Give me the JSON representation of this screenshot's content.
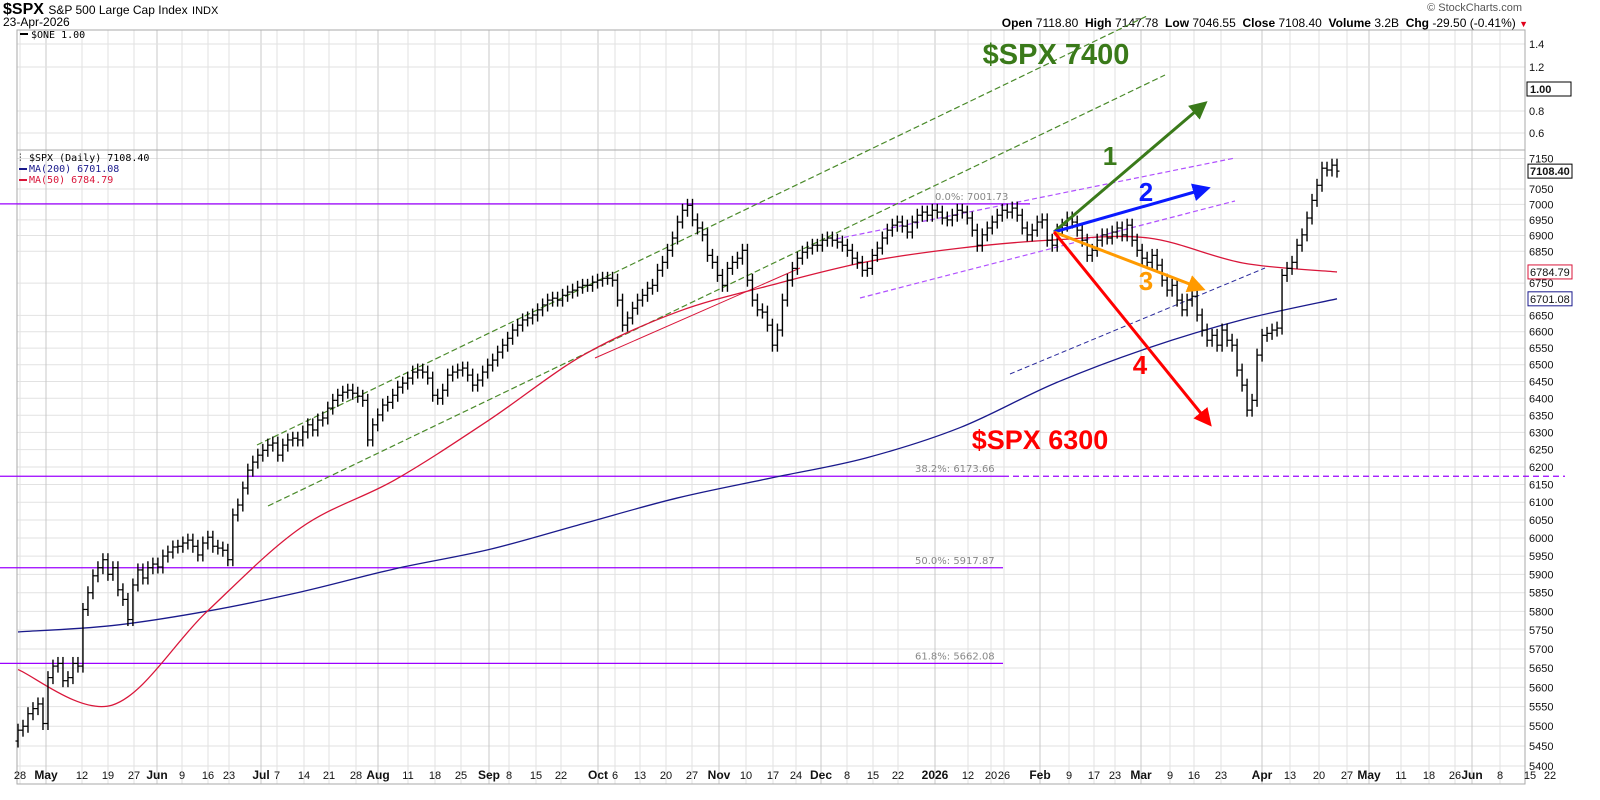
{
  "header": {
    "symbol": "$SPX",
    "name": "S&P 500 Large Cap Index",
    "exchange": "INDX",
    "date": "23-Apr-2026",
    "copyright": "© StockCharts.com",
    "open_label": "Open",
    "open": "7118.80",
    "high_label": "High",
    "high": "7147.78",
    "low_label": "Low",
    "low": "7046.55",
    "close_label": "Close",
    "close": "7108.40",
    "volume_label": "Volume",
    "volume": "3.2B",
    "chg_label": "Chg",
    "chg": "-29.50 (-0.41%)",
    "chg_icon": "down-triangle-icon",
    "chg_color": "#e0001b"
  },
  "upper_panel": {
    "legend": "$ONE 1.00",
    "ticks": [
      "1.4",
      "1.2",
      "0.8",
      "0.6"
    ],
    "current_value": "1.00"
  },
  "legend": {
    "price": "$SPX (Daily) 7108.40",
    "ma200": "MA(200) 6701.08",
    "ma50": "MA(50) 6784.79"
  },
  "chart_data": {
    "type": "ohlc-bar",
    "scale": "log",
    "grid": true,
    "ylim": [
      5380,
      7170
    ],
    "colors": {
      "price": "#000000",
      "ma200": "#1a1a8c",
      "ma50": "#d9163a",
      "fib": "#9b00ff",
      "channel": "#3a7a1a",
      "arrow1": "#3a7a1a",
      "arrow2": "#0a1aff",
      "arrow3": "#ff9a00",
      "arrow4": "#ff0000"
    },
    "y_ticks": [
      5400,
      5450,
      5500,
      5550,
      5600,
      5650,
      5700,
      5750,
      5800,
      5850,
      5900,
      5950,
      6000,
      6050,
      6100,
      6150,
      6200,
      6250,
      6300,
      6350,
      6400,
      6450,
      6500,
      6550,
      6600,
      6650,
      6750,
      6850,
      6900,
      6950,
      7000,
      7050,
      7150
    ],
    "price_tags": {
      "close": "7108.40",
      "ma50": "6784.79",
      "ma200": "6701.08"
    },
    "x_labels": [
      {
        "t": "28",
        "m": false
      },
      {
        "t": "May",
        "m": true
      },
      {
        "t": "12",
        "m": false
      },
      {
        "t": "19",
        "m": false
      },
      {
        "t": "27",
        "m": false
      },
      {
        "t": "Jun",
        "m": true
      },
      {
        "t": "9",
        "m": false
      },
      {
        "t": "16",
        "m": false
      },
      {
        "t": "23",
        "m": false
      },
      {
        "t": "Jul",
        "m": true
      },
      {
        "t": "7",
        "m": false
      },
      {
        "t": "14",
        "m": false
      },
      {
        "t": "21",
        "m": false
      },
      {
        "t": "28",
        "m": false
      },
      {
        "t": "Aug",
        "m": true
      },
      {
        "t": "11",
        "m": false
      },
      {
        "t": "18",
        "m": false
      },
      {
        "t": "25",
        "m": false
      },
      {
        "t": "Sep",
        "m": true
      },
      {
        "t": "8",
        "m": false
      },
      {
        "t": "15",
        "m": false
      },
      {
        "t": "22",
        "m": false
      },
      {
        "t": "Oct",
        "m": true
      },
      {
        "t": "6",
        "m": false
      },
      {
        "t": "13",
        "m": false
      },
      {
        "t": "20",
        "m": false
      },
      {
        "t": "27",
        "m": false
      },
      {
        "t": "Nov",
        "m": true
      },
      {
        "t": "10",
        "m": false
      },
      {
        "t": "17",
        "m": false
      },
      {
        "t": "24",
        "m": false
      },
      {
        "t": "Dec",
        "m": true
      },
      {
        "t": "8",
        "m": false
      },
      {
        "t": "15",
        "m": false
      },
      {
        "t": "22",
        "m": false
      },
      {
        "t": "2026",
        "m": true
      },
      {
        "t": "12",
        "m": false
      },
      {
        "t": "20",
        "m": false
      },
      {
        "t": "26",
        "m": false
      },
      {
        "t": "Feb",
        "m": true
      },
      {
        "t": "9",
        "m": false
      },
      {
        "t": "17",
        "m": false
      },
      {
        "t": "23",
        "m": false
      },
      {
        "t": "Mar",
        "m": true
      },
      {
        "t": "9",
        "m": false
      },
      {
        "t": "16",
        "m": false
      },
      {
        "t": "23",
        "m": false
      },
      {
        "t": "Apr",
        "m": true
      },
      {
        "t": "13",
        "m": false
      },
      {
        "t": "20",
        "m": false
      },
      {
        "t": "27",
        "m": false
      },
      {
        "t": "May",
        "m": true
      },
      {
        "t": "11",
        "m": false
      },
      {
        "t": "18",
        "m": false
      },
      {
        "t": "26",
        "m": false
      },
      {
        "t": "Jun",
        "m": true
      },
      {
        "t": "8",
        "m": false
      },
      {
        "t": "15",
        "m": false
      },
      {
        "t": "22",
        "m": false
      }
    ],
    "closes": [
      5490,
      5500,
      5532,
      5545,
      5557,
      5507,
      5625,
      5655,
      5662,
      5617,
      5625,
      5662,
      5655,
      5805,
      5850,
      5896,
      5918,
      5940,
      5900,
      5918,
      5858,
      5832,
      5778,
      5871,
      5912,
      5890,
      5918,
      5928,
      5920,
      5950,
      5961,
      5975,
      5977,
      5986,
      5994,
      5977,
      5953,
      5986,
      6002,
      5977,
      5972,
      5966,
      5940,
      6064,
      6092,
      6140,
      6191,
      6214,
      6234,
      6248,
      6263,
      6269,
      6234,
      6263,
      6278,
      6283,
      6278,
      6301,
      6322,
      6307,
      6336,
      6342,
      6371,
      6394,
      6409,
      6418,
      6424,
      6415,
      6406,
      6394,
      6278,
      6322,
      6351,
      6380,
      6388,
      6409,
      6433,
      6445,
      6460,
      6478,
      6484,
      6478,
      6460,
      6409,
      6400,
      6424,
      6469,
      6478,
      6484,
      6490,
      6469,
      6439,
      6454,
      6478,
      6499,
      6514,
      6538,
      6559,
      6580,
      6605,
      6620,
      6636,
      6642,
      6651,
      6667,
      6682,
      6697,
      6703,
      6697,
      6712,
      6722,
      6728,
      6737,
      6743,
      6743,
      6753,
      6759,
      6765,
      6765,
      6759,
      6697,
      6620,
      6642,
      6672,
      6697,
      6712,
      6734,
      6743,
      6790,
      6815,
      6853,
      6892,
      6943,
      6981,
      6997,
      6950,
      6924,
      6902,
      6837,
      6815,
      6774,
      6743,
      6796,
      6815,
      6828,
      6853,
      6759,
      6697,
      6667,
      6660,
      6620,
      6559,
      6605,
      6697,
      6759,
      6796,
      6828,
      6847,
      6860,
      6869,
      6869,
      6885,
      6892,
      6885,
      6879,
      6869,
      6853,
      6828,
      6815,
      6790,
      6796,
      6837,
      6860,
      6892,
      6917,
      6933,
      6943,
      6930,
      6911,
      6943,
      6965,
      6975,
      6965,
      6981,
      6975,
      6956,
      6950,
      6965,
      6981,
      6975,
      6956,
      6917,
      6869,
      6902,
      6924,
      6943,
      6965,
      6981,
      6975,
      6988,
      6965,
      6924,
      6902,
      6917,
      6943,
      6950,
      6885,
      6869,
      6917,
      6933,
      6956,
      6943,
      6917,
      6885,
      6837,
      6853,
      6885,
      6902,
      6892,
      6911,
      6924,
      6902,
      6933,
      6885,
      6853,
      6828,
      6815,
      6837,
      6806,
      6759,
      6728,
      6743,
      6697,
      6667,
      6697,
      6709,
      6651,
      6605,
      6574,
      6589,
      6559,
      6605,
      6574,
      6559,
      6484,
      6439,
      6365,
      6394,
      6529,
      6589,
      6595,
      6605,
      6611,
      6774,
      6796,
      6815,
      6869,
      6902,
      6956,
      7013,
      7062,
      7118,
      7112,
      7128,
      7108.4
    ],
    "ma200": [
      5745,
      5762,
      5800,
      5852,
      5915,
      5968,
      6040,
      6112,
      6169,
      6226,
      6314,
      6444,
      6551,
      6637,
      6701.08
    ],
    "ma50": [
      5646,
      5554,
      5798,
      6028,
      6163,
      6336,
      6529,
      6661,
      6744,
      6816,
      6860,
      6886,
      6892,
      6813,
      6784.79
    ],
    "fib_levels": [
      {
        "label": "0.0%: 7001.73",
        "value": 7001.73
      },
      {
        "label": "38.2%: 6173.66",
        "value": 6173.66
      },
      {
        "label": "50.0%: 5917.87",
        "value": 5917.87
      },
      {
        "label": "61.8%: 5662.08",
        "value": 5662.08
      }
    ],
    "annotations": {
      "target_up": "$SPX 7400",
      "target_down": "$SPX 6300",
      "scenario1": "1",
      "scenario2": "2",
      "scenario3": "3",
      "scenario4": "4"
    }
  }
}
